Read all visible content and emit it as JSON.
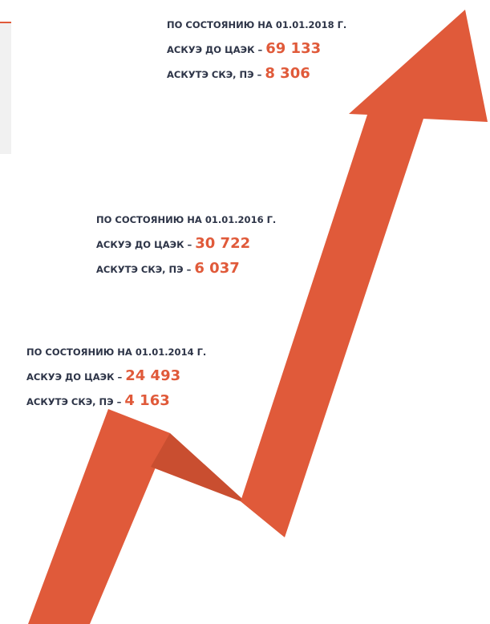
{
  "milestones": [
    {
      "date": "ПО СОСТОЯНИЮ НА 01.01.2018 Г.",
      "lines": [
        {
          "label": "АСКУЭ ДО ЦАЭК –",
          "value": "69 133"
        },
        {
          "label": "АСКУТЭ СКЭ, ПЭ –",
          "value": "8 306"
        }
      ]
    },
    {
      "date": "ПО СОСТОЯНИЮ НА 01.01.2016 Г.",
      "lines": [
        {
          "label": "АСКУЭ ДО ЦАЭК –",
          "value": "30 722"
        },
        {
          "label": "АСКУТЭ СКЭ, ПЭ –",
          "value": "6 037"
        }
      ]
    },
    {
      "date": "ПО СОСТОЯНИЮ НА 01.01.2014 Г.",
      "lines": [
        {
          "label": "АСКУЭ ДО ЦАЭК –",
          "value": "24 493"
        },
        {
          "label": "АСКУТЭ СКЭ, ПЭ –",
          "value": "4 163"
        }
      ]
    }
  ]
}
